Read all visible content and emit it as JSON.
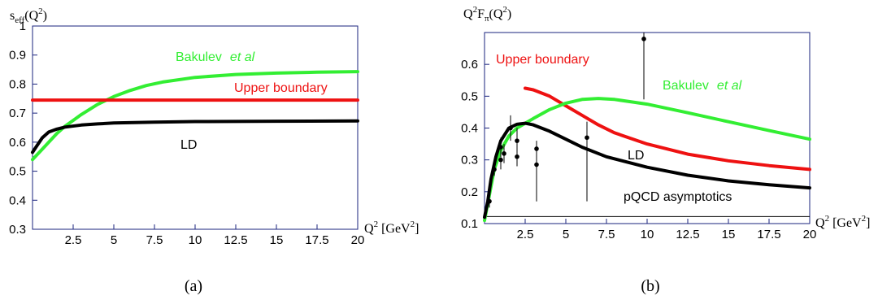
{
  "chart_data": [
    {
      "type": "line",
      "ylabel_main": "s",
      "ylabel_sub": "eff",
      "ylabel_tail": "(Q",
      "ylabel_sup": "2",
      "ylabel_end": ")",
      "xlabel_main": "Q",
      "xlabel_sup": "2",
      "xlabel_unit": "[GeV",
      "xlabel_unit_sup": "2",
      "xlabel_end": "]",
      "xlim": [
        0,
        20
      ],
      "ylim": [
        0.3,
        1.0
      ],
      "xticks": [
        2.5,
        5,
        7.5,
        10,
        12.5,
        15,
        17.5,
        20
      ],
      "xtick_labels": [
        "2.5",
        "5",
        "7.5",
        "10",
        "12.5",
        "15",
        "17.5",
        "20"
      ],
      "yticks": [
        0.3,
        0.4,
        0.5,
        0.6,
        0.7,
        0.8,
        0.9,
        1.0
      ],
      "ytick_labels": [
        "0.3",
        "0.4",
        "0.5",
        "0.6",
        "0.7",
        "0.8",
        "0.9",
        "1"
      ],
      "caption": "(a)",
      "series": [
        {
          "name": "Bakulev",
          "name_italic": "et al",
          "color": "#33ee33",
          "x": [
            0,
            0.5,
            1,
            1.5,
            2,
            2.5,
            3,
            4,
            5,
            6,
            7,
            8,
            10,
            12.5,
            15,
            17.5,
            20
          ],
          "y": [
            0.54,
            0.57,
            0.6,
            0.63,
            0.655,
            0.675,
            0.695,
            0.73,
            0.757,
            0.778,
            0.795,
            0.807,
            0.823,
            0.833,
            0.838,
            0.841,
            0.843
          ]
        },
        {
          "name": "Upper boundary",
          "color": "#ee1111",
          "x": [
            0,
            20
          ],
          "y": [
            0.745,
            0.745
          ]
        },
        {
          "name": "LD",
          "color": "#000000",
          "x": [
            0,
            0.3,
            0.6,
            1,
            1.5,
            2,
            3,
            4,
            5,
            7.5,
            10,
            15,
            20
          ],
          "y": [
            0.565,
            0.59,
            0.615,
            0.635,
            0.645,
            0.652,
            0.659,
            0.663,
            0.666,
            0.669,
            0.671,
            0.672,
            0.673
          ]
        }
      ]
    },
    {
      "type": "line",
      "ylabel_main": "Q",
      "ylabel_sup": "2",
      "ylabel_tail": "F",
      "ylabel_sub": "π",
      "ylabel_end": "(Q",
      "ylabel_sup2": "2",
      "ylabel_end2": ")",
      "xlabel_main": "Q",
      "xlabel_sup": "2",
      "xlabel_unit": "[GeV",
      "xlabel_unit_sup": "2",
      "xlabel_end": "]",
      "xlim": [
        0,
        20
      ],
      "ylim": [
        0.1,
        0.7
      ],
      "xticks": [
        2.5,
        5,
        7.5,
        10,
        12.5,
        15,
        17.5,
        20
      ],
      "xtick_labels": [
        "2.5",
        "5",
        "7.5",
        "10",
        "12.5",
        "15",
        "17.5",
        "20"
      ],
      "yticks": [
        0.1,
        0.2,
        0.3,
        0.4,
        0.5,
        0.6
      ],
      "ytick_labels": [
        "0.1",
        "0.2",
        "0.3",
        "0.4",
        "0.5",
        "0.6"
      ],
      "caption": "(b)",
      "asymptote_label": "pQCD asymptotics",
      "asymptote_y": 0.122,
      "series": [
        {
          "name": "Upper boundary",
          "color": "#ee1111",
          "x": [
            2.5,
            3,
            4,
            5,
            6,
            7,
            8,
            10,
            12.5,
            15,
            17.5,
            20
          ],
          "y": [
            0.525,
            0.52,
            0.5,
            0.47,
            0.44,
            0.41,
            0.385,
            0.35,
            0.318,
            0.297,
            0.282,
            0.27
          ]
        },
        {
          "name": "Bakulev",
          "name_italic": "et al",
          "color": "#33ee33",
          "x": [
            0,
            0.3,
            0.6,
            1,
            1.5,
            2,
            3,
            4,
            5,
            6,
            7,
            8,
            10,
            12.5,
            15,
            17.5,
            20
          ],
          "y": [
            0.11,
            0.19,
            0.27,
            0.33,
            0.375,
            0.4,
            0.43,
            0.458,
            0.478,
            0.49,
            0.493,
            0.49,
            0.475,
            0.448,
            0.42,
            0.392,
            0.365
          ]
        },
        {
          "name": "LD",
          "color": "#000000",
          "x": [
            0,
            0.2,
            0.4,
            0.7,
            1,
            1.5,
            2,
            2.5,
            3,
            4,
            5,
            6,
            7.5,
            10,
            12.5,
            15,
            17.5,
            20
          ],
          "y": [
            0.12,
            0.17,
            0.24,
            0.31,
            0.36,
            0.4,
            0.412,
            0.415,
            0.41,
            0.39,
            0.365,
            0.34,
            0.31,
            0.277,
            0.252,
            0.234,
            0.222,
            0.212
          ]
        }
      ],
      "points": [
        {
          "x": 0.3,
          "y": 0.17,
          "lo": 0.15,
          "hi": 0.19
        },
        {
          "x": 0.6,
          "y": 0.27,
          "lo": 0.25,
          "hi": 0.29
        },
        {
          "x": 1.0,
          "y": 0.3,
          "lo": 0.27,
          "hi": 0.34
        },
        {
          "x": 1.0,
          "y": 0.34,
          "lo": 0.31,
          "hi": 0.37
        },
        {
          "x": 1.2,
          "y": 0.32,
          "lo": 0.29,
          "hi": 0.35
        },
        {
          "x": 1.6,
          "y": 0.4,
          "lo": 0.36,
          "hi": 0.44
        },
        {
          "x": 2.0,
          "y": 0.36,
          "lo": 0.32,
          "hi": 0.4
        },
        {
          "x": 2.0,
          "y": 0.31,
          "lo": 0.28,
          "hi": 0.34
        },
        {
          "x": 3.2,
          "y": 0.335,
          "lo": 0.17,
          "hi": 0.36
        },
        {
          "x": 3.2,
          "y": 0.285,
          "lo": 0.17,
          "hi": 0.31
        },
        {
          "x": 6.3,
          "y": 0.37,
          "lo": 0.17,
          "hi": 0.42
        },
        {
          "x": 9.8,
          "y": 0.68,
          "lo": 0.49,
          "hi": 0.7
        }
      ]
    }
  ]
}
